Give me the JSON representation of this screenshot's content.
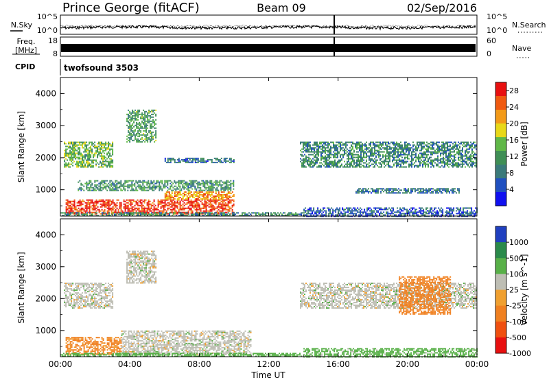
{
  "header": {
    "station": "Prince George (fitACF)",
    "beam": "Beam 09",
    "date": "02/Sep/2016"
  },
  "panels": {
    "nsky_label": "N.Sky",
    "nsearch_label": "N.Search",
    "freq_label_1": "Freq.",
    "freq_label_2": "[MHz]",
    "nave_label": "Nave",
    "cpid_label": "CPID",
    "cpid_value": "twofsound 3503",
    "noise_ticks_left": [
      "10^5",
      "10^0"
    ],
    "noise_ticks_right": [
      "10^5",
      "10^0"
    ],
    "freq_ticks_left": [
      "18",
      "8"
    ],
    "nave_ticks_right": [
      "60",
      "0"
    ]
  },
  "chart_data": [
    {
      "type": "heatmap",
      "title": "",
      "xlabel": "Time UT",
      "ylabel": "Slant Range [km]",
      "x_ticks": [
        "00:00",
        "04:00",
        "08:00",
        "12:00",
        "16:00",
        "20:00",
        "00:00"
      ],
      "x_range_hours": [
        0,
        24
      ],
      "y_ticks": [
        1000,
        2000,
        3000,
        4000
      ],
      "y_range_km": [
        180,
        4500
      ],
      "colorbar": {
        "label": "Power [dB]",
        "ticks": [
          4,
          8,
          12,
          16,
          20,
          24,
          28
        ],
        "range": [
          0,
          30
        ],
        "colors": [
          "#1010f0",
          "#2050c0",
          "#3a7a7a",
          "#3f8f55",
          "#60b848",
          "#e8d818",
          "#f39a18",
          "#f05a10",
          "#e81010"
        ]
      },
      "regions": [
        {
          "t0": 0.3,
          "t1": 10.0,
          "r0": 250,
          "r1": 700,
          "value": 27
        },
        {
          "t0": 6.0,
          "t1": 10.0,
          "r0": 700,
          "r1": 950,
          "value": 22
        },
        {
          "t0": 0.0,
          "t1": 14.0,
          "r0": 180,
          "r1": 300,
          "value": 10
        },
        {
          "t0": 0.2,
          "t1": 3.0,
          "r0": 1700,
          "r1": 2500,
          "value": 14
        },
        {
          "t0": 3.8,
          "t1": 5.5,
          "r0": 2500,
          "r1": 3500,
          "value": 12
        },
        {
          "t0": 1.0,
          "t1": 10.0,
          "r0": 1000,
          "r1": 1300,
          "value": 11
        },
        {
          "t0": 13.8,
          "t1": 24.0,
          "r0": 1700,
          "r1": 2500,
          "value": 10
        },
        {
          "t0": 14.0,
          "t1": 24.0,
          "r0": 180,
          "r1": 450,
          "value": 6
        },
        {
          "t0": 17.0,
          "t1": 23.0,
          "r0": 900,
          "r1": 1050,
          "value": 8
        },
        {
          "t0": 6.0,
          "t1": 10.0,
          "r0": 1850,
          "r1": 2000,
          "value": 8
        }
      ]
    },
    {
      "type": "heatmap",
      "title": "",
      "xlabel": "Time UT",
      "ylabel": "Slant Range [km]",
      "x_ticks": [
        "00:00",
        "04:00",
        "08:00",
        "12:00",
        "16:00",
        "20:00",
        "00:00"
      ],
      "x_range_hours": [
        0,
        24
      ],
      "y_ticks": [
        1000,
        2000,
        3000,
        4000
      ],
      "y_range_km": [
        180,
        4500
      ],
      "colorbar": {
        "label": "Velocity [m s^-1]",
        "ticks": [
          "1000",
          "500",
          "100",
          "25",
          "-25",
          "-100",
          "-500",
          "-1000"
        ],
        "range": [
          -1200,
          1200
        ],
        "colors": [
          "#2040c0",
          "#2a8a4a",
          "#58b048",
          "#bebeb4",
          "#f0a030",
          "#f08020",
          "#f05010",
          "#e81010"
        ]
      },
      "regions": [
        {
          "t0": 0.3,
          "t1": 3.5,
          "r0": 250,
          "r1": 800,
          "value": -120
        },
        {
          "t0": 3.5,
          "t1": 11.0,
          "r0": 250,
          "r1": 1000,
          "value": 0
        },
        {
          "t0": 0.0,
          "t1": 14.0,
          "r0": 180,
          "r1": 300,
          "value": 60
        },
        {
          "t0": 0.2,
          "t1": 3.0,
          "r0": 1700,
          "r1": 2500,
          "value": 0
        },
        {
          "t0": 3.8,
          "t1": 5.5,
          "r0": 2500,
          "r1": 3500,
          "value": 0
        },
        {
          "t0": 13.8,
          "t1": 24.0,
          "r0": 1700,
          "r1": 2500,
          "value": 0
        },
        {
          "t0": 19.5,
          "t1": 22.5,
          "r0": 1500,
          "r1": 2700,
          "value": -300
        },
        {
          "t0": 14.0,
          "t1": 24.0,
          "r0": 180,
          "r1": 450,
          "value": 50
        }
      ]
    }
  ]
}
